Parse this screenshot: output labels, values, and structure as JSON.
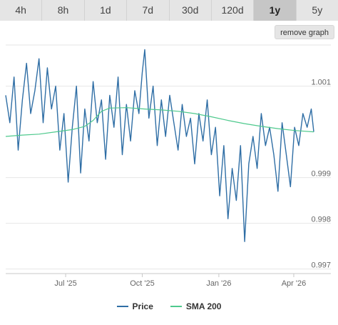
{
  "tabs": [
    {
      "label": "4h",
      "active": false
    },
    {
      "label": "8h",
      "active": false
    },
    {
      "label": "1d",
      "active": false
    },
    {
      "label": "7d",
      "active": false
    },
    {
      "label": "30d",
      "active": false
    },
    {
      "label": "120d",
      "active": false
    },
    {
      "label": "1y",
      "active": true
    },
    {
      "label": "5y",
      "active": false
    }
  ],
  "remove_graph_label": "remove graph",
  "colors": {
    "price": "#2f6ea5",
    "sma": "#4ec98d",
    "grid": "#e6e6e6",
    "axis": "#c8c8c8",
    "text": "#666666"
  },
  "chart_data": {
    "type": "line",
    "title": "",
    "xlabel": "",
    "ylabel": "",
    "y_position": "right",
    "grid": "horizontal",
    "legend_position": "bottom-center",
    "xlim": [
      "2025-04-20",
      "2026-04-25"
    ],
    "ylim": [
      0.9969,
      1.0019
    ],
    "x_ticks": [
      {
        "date": "2025-07-01",
        "label": "Jul '25"
      },
      {
        "date": "2025-10-01",
        "label": "Oct '25"
      },
      {
        "date": "2026-01-01",
        "label": "Jan '26"
      },
      {
        "date": "2026-04-01",
        "label": "Apr '26"
      }
    ],
    "y_ticks": [
      {
        "value": 1.001,
        "label": "1.001"
      },
      {
        "value": 0.999,
        "label": "0.999"
      },
      {
        "value": 0.998,
        "label": "0.998"
      },
      {
        "value": 0.997,
        "label": "0.997"
      }
    ],
    "series": [
      {
        "name": "Price",
        "x": [
          "2025-04-20",
          "2025-04-25",
          "2025-04-30",
          "2025-05-05",
          "2025-05-10",
          "2025-05-15",
          "2025-05-20",
          "2025-05-25",
          "2025-05-30",
          "2025-06-04",
          "2025-06-09",
          "2025-06-14",
          "2025-06-19",
          "2025-06-24",
          "2025-06-29",
          "2025-07-04",
          "2025-07-09",
          "2025-07-14",
          "2025-07-19",
          "2025-07-24",
          "2025-07-29",
          "2025-08-03",
          "2025-08-08",
          "2025-08-13",
          "2025-08-18",
          "2025-08-23",
          "2025-08-28",
          "2025-09-02",
          "2025-09-07",
          "2025-09-12",
          "2025-09-17",
          "2025-09-22",
          "2025-09-27",
          "2025-10-01",
          "2025-10-04",
          "2025-10-09",
          "2025-10-14",
          "2025-10-19",
          "2025-10-24",
          "2025-10-29",
          "2025-11-03",
          "2025-11-08",
          "2025-11-13",
          "2025-11-18",
          "2025-11-23",
          "2025-11-28",
          "2025-12-03",
          "2025-12-08",
          "2025-12-13",
          "2025-12-18",
          "2025-12-23",
          "2025-12-28",
          "2026-01-02",
          "2026-01-07",
          "2026-01-12",
          "2026-01-17",
          "2026-01-22",
          "2026-01-27",
          "2026-02-01",
          "2026-02-06",
          "2026-02-11",
          "2026-02-16",
          "2026-02-21",
          "2026-02-26",
          "2026-03-03",
          "2026-03-08",
          "2026-03-13",
          "2026-03-18",
          "2026-03-23",
          "2026-03-28",
          "2026-04-02",
          "2026-04-07",
          "2026-04-12",
          "2026-04-17",
          "2026-04-22",
          "2026-04-25"
        ],
        "values": [
          1.0008,
          1.0002,
          1.0012,
          0.9996,
          1.0007,
          1.0015,
          1.0004,
          1.0009,
          1.0016,
          1.0002,
          1.0014,
          1.0005,
          1.001,
          0.9996,
          1.0004,
          0.9989,
          1.0001,
          1.001,
          0.9991,
          1.0005,
          0.9998,
          1.0011,
          1.0002,
          1.0007,
          0.9994,
          1.0008,
          1.0001,
          1.0012,
          0.9995,
          1.0006,
          0.9998,
          1.0009,
          1.0004,
          1.0013,
          1.0018,
          1.0003,
          1.001,
          0.9997,
          1.0007,
          0.9999,
          1.0008,
          1.0002,
          0.9996,
          1.0006,
          0.9999,
          1.0003,
          0.9993,
          1.0004,
          0.9998,
          1.0007,
          0.9995,
          1.0001,
          0.9986,
          0.9997,
          0.9981,
          0.9992,
          0.9985,
          0.9997,
          0.9976,
          0.9993,
          0.9999,
          0.9992,
          1.0004,
          0.9997,
          1.0001,
          0.9995,
          0.9987,
          1.0002,
          0.9995,
          0.9988,
          1.0001,
          0.9997,
          1.0004,
          1.0001,
          1.0005,
          1.0
        ]
      },
      {
        "name": "SMA 200",
        "x": [
          "2025-04-20",
          "2025-05-10",
          "2025-05-30",
          "2025-06-19",
          "2025-07-09",
          "2025-07-24",
          "2025-08-03",
          "2025-08-13",
          "2025-08-23",
          "2025-09-12",
          "2025-10-04",
          "2025-10-24",
          "2025-11-13",
          "2025-12-03",
          "2025-12-23",
          "2026-01-12",
          "2026-02-01",
          "2026-02-21",
          "2026-03-13",
          "2026-04-02",
          "2026-04-25"
        ],
        "values": [
          0.9999,
          0.99993,
          0.99995,
          1.0,
          1.00005,
          1.00012,
          1.00025,
          1.00045,
          1.00052,
          1.00053,
          1.0005,
          1.00048,
          1.00045,
          1.0004,
          1.00033,
          1.00025,
          1.00018,
          1.00012,
          1.00007,
          1.00003,
          1.0
        ]
      }
    ]
  }
}
